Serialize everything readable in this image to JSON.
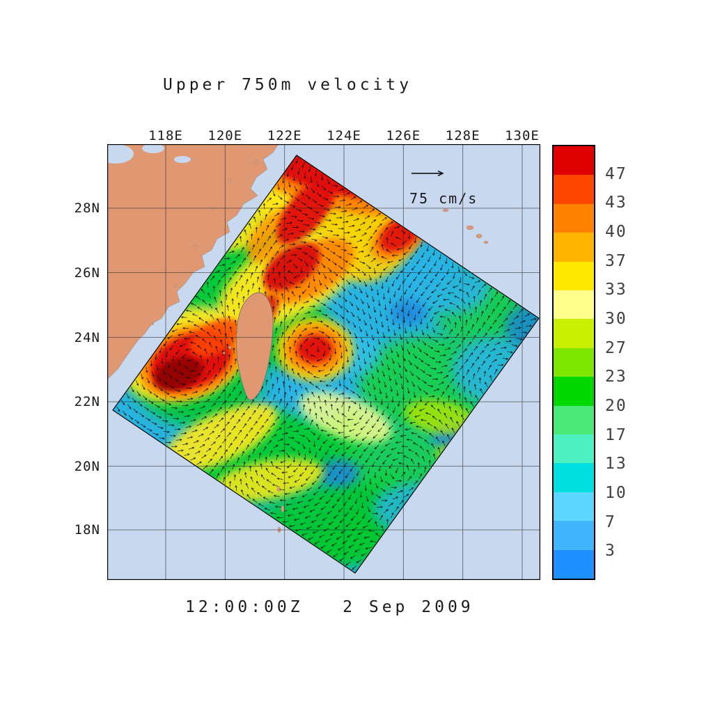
{
  "chart": {
    "title": "Upper 750m velocity",
    "timestamp": "12:00:00Z   2 Sep 2009",
    "scale_label": "75 cm/s"
  },
  "axes": {
    "lon_labels": [
      "118E",
      "120E",
      "122E",
      "124E",
      "126E",
      "128E",
      "130E"
    ],
    "lat_labels": [
      "28N",
      "26N",
      "24N",
      "22N",
      "20N",
      "18N"
    ]
  },
  "colorbar": {
    "labels_top_to_bottom": [
      "47",
      "43",
      "40",
      "37",
      "33",
      "30",
      "27",
      "23",
      "20",
      "17",
      "13",
      "10",
      "7",
      "3"
    ],
    "colors_top_to_bottom": [
      "#e00000",
      "#ff4600",
      "#ff8200",
      "#ffb400",
      "#ffe800",
      "#ffff8c",
      "#c8f000",
      "#7ee600",
      "#00d800",
      "#4de87a",
      "#4df0c0",
      "#00e0e0",
      "#5cd6ff",
      "#41b6ff",
      "#1e90ff"
    ],
    "units": "cm/s"
  },
  "colors": {
    "land": "#e09873",
    "sea": "#c8d8ef",
    "grid": "#2a2a2a",
    "arrows": "#000000"
  },
  "chart_data": {
    "type": "heatmap",
    "title": "Upper 750m velocity",
    "subtitle": "12:00:00Z 2 Sep 2009",
    "description": "Ocean current vector field of the upper 750 m around Taiwan and the western Pacific; arrow glyphs give current direction, fill color gives speed, rotated model swath over a lat/lon map",
    "reference_vector_cm_s": 75,
    "speed_levels_cm_s": [
      3,
      7,
      10,
      13,
      17,
      20,
      23,
      27,
      30,
      33,
      37,
      40,
      43,
      47
    ],
    "speed_units": "cm/s",
    "x": {
      "label": "longitude",
      "ticks": [
        "118E",
        "120E",
        "122E",
        "124E",
        "126E",
        "128E",
        "130E"
      ]
    },
    "y": {
      "label": "latitude",
      "ticks": [
        "28N",
        "26N",
        "24N",
        "22N",
        "20N",
        "18N"
      ]
    },
    "grid": true,
    "legend_position": "right-colorbar",
    "high_speed_regions": [
      "Kuroshio northeast of Taiwan (>47 cm/s)",
      "Taiwan Strait / southwest of Taiwan (>47 cm/s)",
      "eddy east of Taiwan"
    ],
    "low_speed_regions": [
      "open Pacific east and southeast of the swath (3-13 cm/s)"
    ]
  }
}
